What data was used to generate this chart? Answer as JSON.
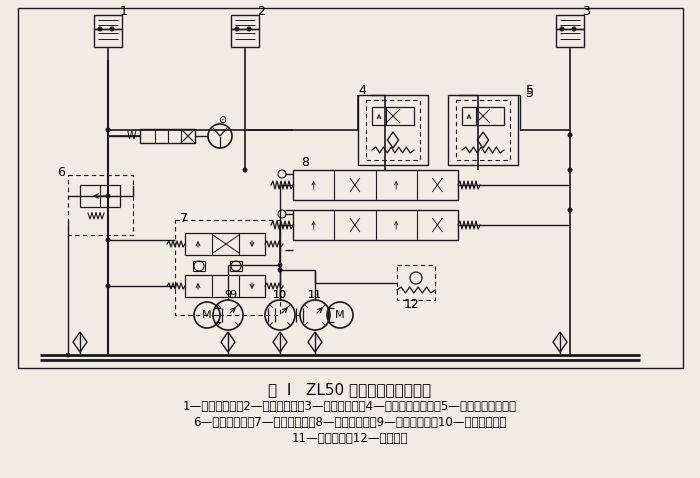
{
  "title_line1": "图  I   ZL50 型装载机液压系统图",
  "caption_line1": "1—转向液压缸；2—动臂液压缸；3—铲斗液压缸；4—后双作用安全阀；5—前双作用安全阀；",
  "caption_line2": "6—转向溢流阀；7—流量转换阀；8—多路换向阀；9—转向液压泵；10—辅助液压泵；",
  "caption_line3": "11—主液压泵；12—总安全阀",
  "bg_color": "#eeece4",
  "line_color": "#1a1a1a",
  "title_fontsize": 11,
  "caption_fontsize": 8.5
}
